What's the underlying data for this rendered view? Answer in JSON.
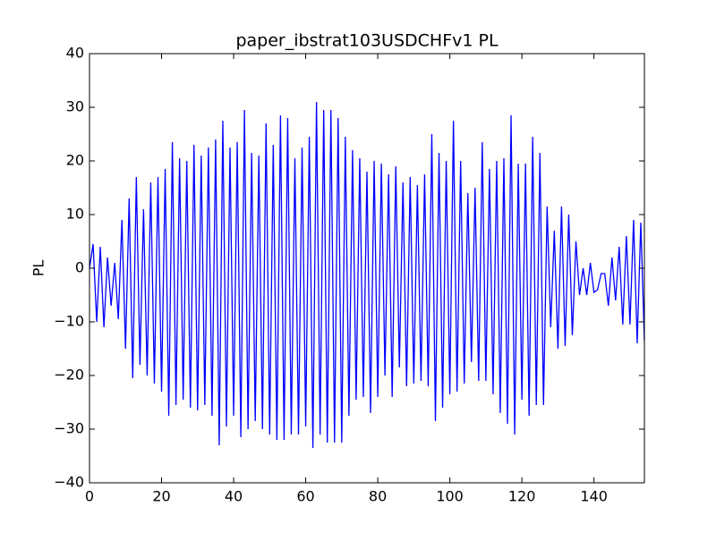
{
  "chart_data": {
    "type": "line",
    "title": "paper_ibstrat103USDCHFv1 PL",
    "y_label": "PL",
    "x": [
      0,
      1,
      2,
      3,
      4,
      5,
      6,
      7,
      8,
      9,
      10,
      11,
      12,
      13,
      14,
      15,
      16,
      17,
      18,
      19,
      20,
      21,
      22,
      23,
      24,
      25,
      26,
      27,
      28,
      29,
      30,
      31,
      32,
      33,
      34,
      35,
      36,
      37,
      38,
      39,
      40,
      41,
      42,
      43,
      44,
      45,
      46,
      47,
      48,
      49,
      50,
      51,
      52,
      53,
      54,
      55,
      56,
      57,
      58,
      59,
      60,
      61,
      62,
      63,
      64,
      65,
      66,
      67,
      68,
      69,
      70,
      71,
      72,
      73,
      74,
      75,
      76,
      77,
      78,
      79,
      80,
      81,
      82,
      83,
      84,
      85,
      86,
      87,
      88,
      89,
      90,
      91,
      92,
      93,
      94,
      95,
      96,
      97,
      98,
      99,
      100,
      101,
      102,
      103,
      104,
      105,
      106,
      107,
      108,
      109,
      110,
      111,
      112,
      113,
      114,
      115,
      116,
      117,
      118,
      119,
      120,
      121,
      122,
      123,
      124,
      125,
      126,
      127,
      128,
      129,
      130,
      131,
      132,
      133,
      134,
      135,
      136,
      137,
      138,
      139,
      140,
      141,
      142,
      143,
      144,
      145,
      146,
      147,
      148,
      149,
      150,
      151,
      152,
      153,
      154
    ],
    "series": [
      {
        "color": "#0000ff",
        "values": [
          0,
          4.5,
          -10,
          4,
          -11,
          2,
          -7,
          1,
          -9.5,
          9,
          -15,
          13,
          -20.5,
          17,
          -18,
          11,
          -20,
          16,
          -21.5,
          17,
          -23,
          18.5,
          -27.5,
          23.5,
          -25.5,
          20.5,
          -24.5,
          20,
          -26,
          23,
          -26.5,
          21,
          -25.5,
          22.5,
          -27.5,
          24,
          -33,
          27.5,
          -29.5,
          22.5,
          -27.5,
          23.5,
          -31.5,
          29.5,
          -30,
          21.5,
          -28.5,
          21,
          -30,
          27,
          -31,
          23,
          -32,
          28.5,
          -32,
          28,
          -31,
          20.5,
          -31,
          22.5,
          -29.5,
          24.5,
          -33.5,
          31,
          -31,
          29.5,
          -32.5,
          29.5,
          -32.5,
          28,
          -32.5,
          24.5,
          -27.5,
          22,
          -24.5,
          20.5,
          -24,
          18,
          -27,
          20,
          -24,
          19.5,
          -20,
          17.5,
          -24,
          19,
          -18.5,
          16,
          -22,
          17,
          -21.5,
          15.5,
          -21,
          17.5,
          -22,
          25,
          -28.5,
          21.5,
          -26,
          20,
          -23.5,
          27.5,
          -23,
          20,
          -21.5,
          14,
          -17.5,
          15,
          -21,
          23.5,
          -21,
          18.5,
          -23.5,
          20,
          -27,
          20.5,
          -29,
          28.5,
          -31,
          19.5,
          -24.5,
          19.5,
          -27.5,
          24.5,
          -25.5,
          21.5,
          -25.5,
          11.5,
          -11,
          7,
          -15,
          11.5,
          -14.5,
          10,
          -12.5,
          5,
          -5,
          0,
          -5,
          1,
          -4.5,
          -4,
          -1,
          -1,
          -7,
          2,
          -6,
          4,
          -10.5,
          6,
          -10.5,
          9,
          -14,
          8.5,
          -13.5
        ]
      }
    ],
    "xlim": [
      0,
      154
    ],
    "ylim": [
      -40,
      40
    ],
    "xticks": [
      0,
      20,
      40,
      60,
      80,
      100,
      120,
      140
    ],
    "yticks": [
      {
        "value": -40,
        "label": "−40"
      },
      {
        "value": -30,
        "label": "−30"
      },
      {
        "value": -20,
        "label": "−20"
      },
      {
        "value": -10,
        "label": "−10"
      },
      0,
      10,
      20,
      30,
      40
    ]
  }
}
